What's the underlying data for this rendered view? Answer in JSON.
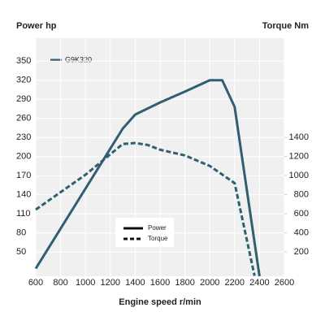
{
  "chart_data": {
    "type": "line",
    "y_title": "Power hp",
    "y2_title": "Torque Nm",
    "x_title": "Engine speed r/min",
    "annotation": "G9K320",
    "xlim": [
      600,
      2600
    ],
    "xticks": [
      600,
      800,
      1000,
      1200,
      1400,
      1600,
      1800,
      2000,
      2200,
      2400,
      2600
    ],
    "ylim": [
      12,
      386
    ],
    "yticks": [
      50,
      80,
      110,
      140,
      170,
      200,
      230,
      260,
      290,
      320,
      350
    ],
    "y2lim": [
      -55,
      2438
    ],
    "y2ticks": [
      200,
      400,
      600,
      800,
      1000,
      1200,
      1400
    ],
    "grid": true,
    "legend_color": "#111111",
    "series": [
      {
        "name": "Power",
        "color": "#2f5f70",
        "dash": false,
        "x": [
          600,
          1300,
          1400,
          1600,
          1800,
          2000,
          2100,
          2200,
          2400
        ],
        "values": [
          24,
          244,
          266,
          285,
          302,
          320,
          320,
          278,
          12
        ]
      },
      {
        "name": "Torque",
        "color": "#2f5f70",
        "dash": true,
        "axis": "y2",
        "x": [
          600,
          1000,
          1300,
          1400,
          1500,
          1600,
          1800,
          2000,
          2200,
          2360
        ],
        "values": [
          643,
          1008,
          1330,
          1340,
          1320,
          1270,
          1210,
          1100,
          920,
          -50
        ]
      }
    ]
  }
}
